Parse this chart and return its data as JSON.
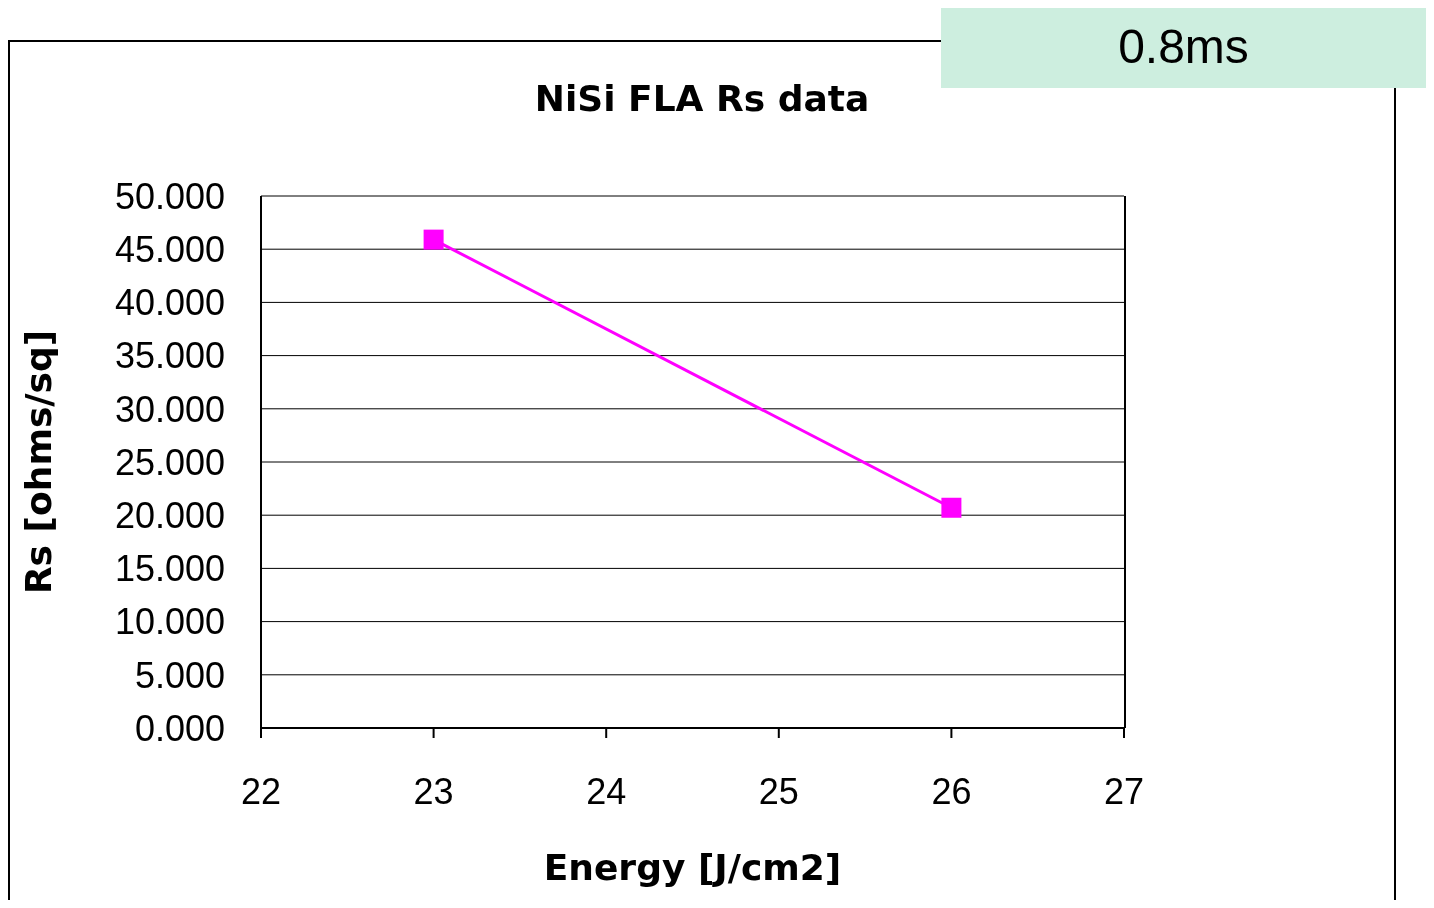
{
  "chart_data": {
    "type": "line",
    "title": "NiSi FLA Rs data",
    "xlabel": "Energy [J/cm2]",
    "ylabel": "Rs [ohms/sq]",
    "x": [
      23,
      26
    ],
    "series": [
      {
        "color": "#ff00ff",
        "values": [
          45.9,
          20.7
        ]
      }
    ],
    "xlim": [
      22,
      27
    ],
    "xticks": [
      22,
      23,
      24,
      25,
      26,
      27
    ],
    "ylim": [
      0,
      50
    ],
    "yticks": [
      {
        "value": 0,
        "label": "0.000"
      },
      {
        "value": 5,
        "label": "5.000"
      },
      {
        "value": 10,
        "label": "10.000"
      },
      {
        "value": 15,
        "label": "15.000"
      },
      {
        "value": 20,
        "label": "20.000"
      },
      {
        "value": 25,
        "label": "25.000"
      },
      {
        "value": 30,
        "label": "30.000"
      },
      {
        "value": 35,
        "label": "35.000"
      },
      {
        "value": 40,
        "label": "40.000"
      },
      {
        "value": 45,
        "label": "45.000"
      },
      {
        "value": 50,
        "label": "50.000"
      }
    ],
    "grid": "y",
    "marker": "square",
    "line_style": "solid",
    "annotations": [
      "0.8ms"
    ]
  }
}
